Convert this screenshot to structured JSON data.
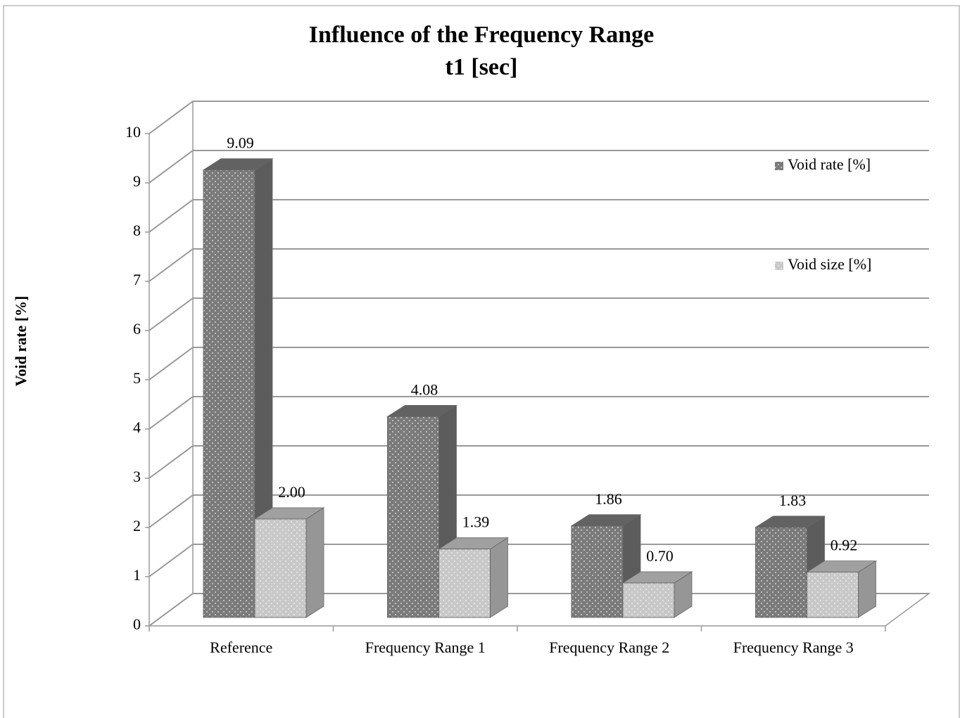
{
  "chart_data": {
    "type": "bar3d",
    "title": "Influence of the Frequency Range",
    "subtitle": "t1 [sec]",
    "y_label": "Void rate [%]",
    "categories": [
      "Reference",
      "Frequency Range 1",
      "Frequency Range 2",
      "Frequency Range 3"
    ],
    "series": [
      {
        "name": "Void rate [%]",
        "color": "#7a7a7a",
        "values": [
          9.09,
          4.08,
          1.86,
          1.83
        ],
        "value_labels": [
          "9.09",
          "4.08",
          "1.86",
          "1.83"
        ]
      },
      {
        "name": "Void size [%]",
        "color": "#c8c8c8",
        "values": [
          2.0,
          1.39,
          0.7,
          0.92
        ],
        "value_labels": [
          "2.00",
          "1.39",
          "0.70",
          "0.92"
        ]
      }
    ],
    "ylim": [
      0,
      10
    ],
    "yticks": [
      0,
      1,
      2,
      3,
      4,
      5,
      6,
      7,
      8,
      9,
      10
    ],
    "grid": true,
    "legend": "right"
  }
}
